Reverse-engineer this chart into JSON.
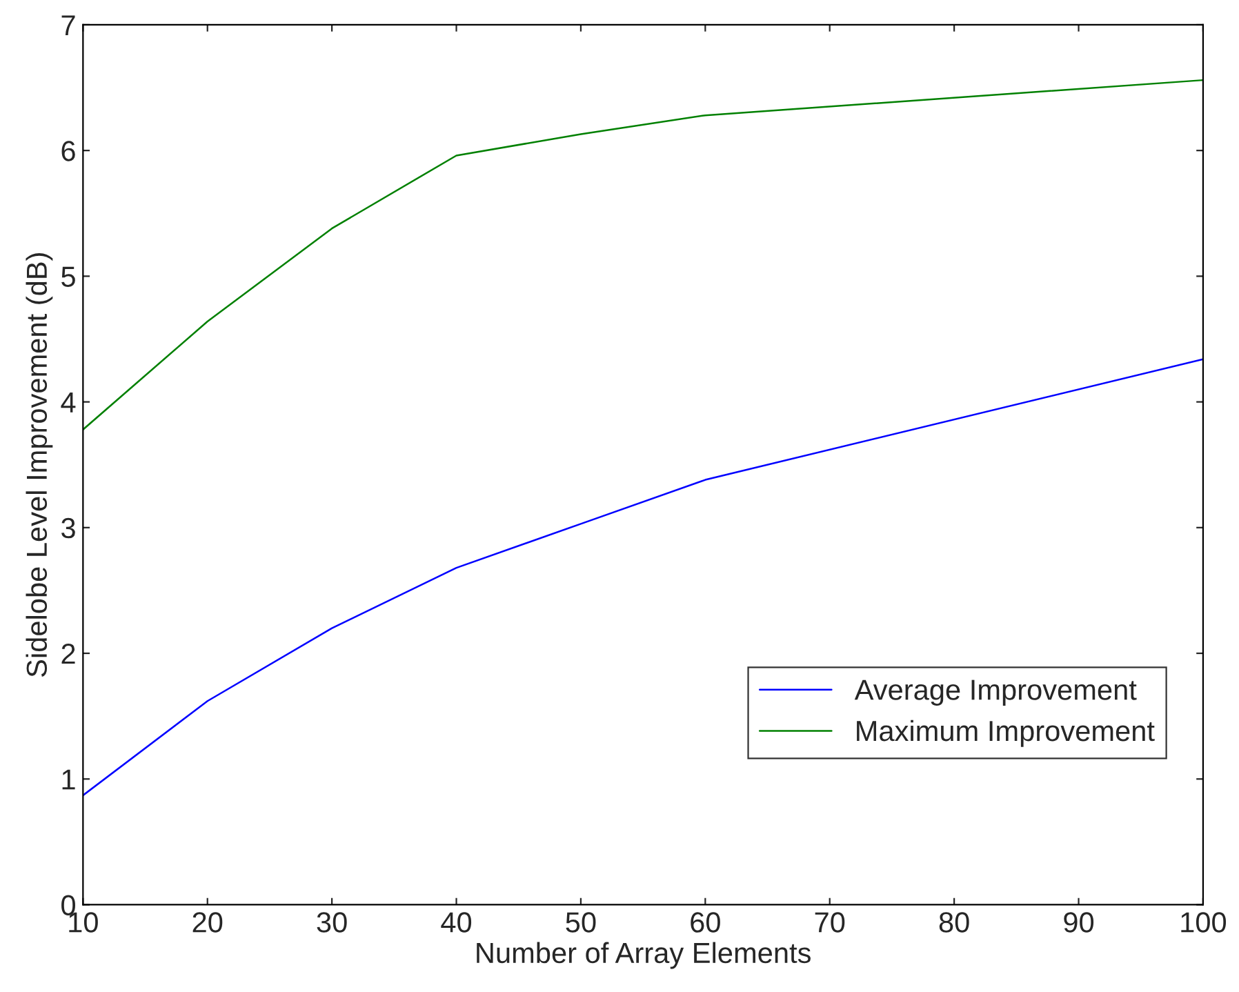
{
  "chart_data": {
    "type": "line",
    "xlabel": "Number of Array Elements",
    "ylabel": "Sidelobe Level Improvement (dB)",
    "x": [
      10,
      20,
      30,
      40,
      50,
      60,
      100
    ],
    "series": [
      {
        "name": "Average Improvement",
        "color": "#0000ff",
        "values": [
          0.87,
          1.62,
          2.2,
          2.68,
          3.03,
          3.38,
          4.34
        ]
      },
      {
        "name": "Maximum Improvement",
        "color": "#008000",
        "values": [
          3.78,
          4.64,
          5.38,
          5.96,
          6.13,
          6.28,
          6.56
        ]
      }
    ],
    "xlim": [
      10,
      100
    ],
    "xticks": [
      10,
      20,
      30,
      40,
      50,
      60,
      70,
      80,
      90,
      100
    ],
    "ylim": [
      0,
      7
    ],
    "yticks": [
      0,
      1,
      2,
      3,
      4,
      5,
      6,
      7
    ],
    "grid": false,
    "legend": "bottom right"
  }
}
